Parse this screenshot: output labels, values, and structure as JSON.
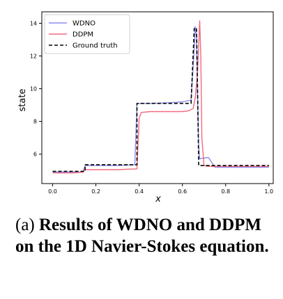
{
  "chart_data": {
    "type": "line",
    "xlabel": "x",
    "ylabel": "state",
    "xlim": [
      -0.05,
      1.02
    ],
    "ylim": [
      4.2,
      14.7
    ],
    "xticks": [
      "0.0",
      "0.2",
      "0.4",
      "0.6",
      "0.8",
      "1.0"
    ],
    "yticks": [
      "6",
      "8",
      "10",
      "12",
      "14"
    ],
    "grid": false,
    "legend_position": "top-left",
    "series": [
      {
        "name": "WDNO",
        "color": "#8c8cf0",
        "style": "solid",
        "x": [
          0.0,
          0.05,
          0.1,
          0.14,
          0.15,
          0.2,
          0.3,
          0.38,
          0.39,
          0.4,
          0.45,
          0.5,
          0.55,
          0.6,
          0.64,
          0.655,
          0.66,
          0.665,
          0.67,
          0.675,
          0.68,
          0.69,
          0.7,
          0.72,
          0.735,
          0.75,
          0.8,
          0.9,
          1.0
        ],
        "y": [
          4.9,
          4.9,
          4.9,
          4.9,
          5.3,
          5.3,
          5.3,
          5.35,
          9.1,
          9.1,
          9.1,
          9.12,
          9.15,
          9.2,
          9.3,
          12.5,
          13.8,
          13.2,
          9.6,
          6.5,
          5.7,
          5.75,
          5.75,
          5.8,
          5.5,
          5.2,
          5.2,
          5.2,
          5.2
        ]
      },
      {
        "name": "DDPM",
        "color": "#f06a80",
        "style": "solid",
        "x": [
          0.0,
          0.05,
          0.1,
          0.14,
          0.15,
          0.2,
          0.3,
          0.39,
          0.4,
          0.41,
          0.45,
          0.5,
          0.55,
          0.6,
          0.63,
          0.65,
          0.66,
          0.67,
          0.68,
          0.685,
          0.69,
          0.7,
          0.72,
          0.8,
          0.9,
          1.0
        ],
        "y": [
          4.85,
          4.85,
          4.85,
          4.9,
          5.05,
          5.05,
          5.05,
          5.1,
          8.2,
          8.55,
          8.6,
          8.6,
          8.6,
          8.6,
          8.65,
          8.8,
          9.5,
          11.0,
          14.15,
          12.0,
          7.0,
          5.3,
          5.25,
          5.25,
          5.25,
          5.25
        ]
      },
      {
        "name": "Ground truth",
        "color": "#000000",
        "style": "dashed",
        "x": [
          0.0,
          0.15,
          0.15,
          0.39,
          0.39,
          0.64,
          0.655,
          0.665,
          0.67,
          0.675,
          0.675,
          1.0
        ],
        "y": [
          4.95,
          4.95,
          5.35,
          5.35,
          9.1,
          9.1,
          13.7,
          13.7,
          10.0,
          5.5,
          5.3,
          5.3
        ]
      }
    ]
  },
  "caption": {
    "prefix": "(a) ",
    "text": "Results of WDNO and DDPM on the 1D Navier-Stokes equation."
  }
}
